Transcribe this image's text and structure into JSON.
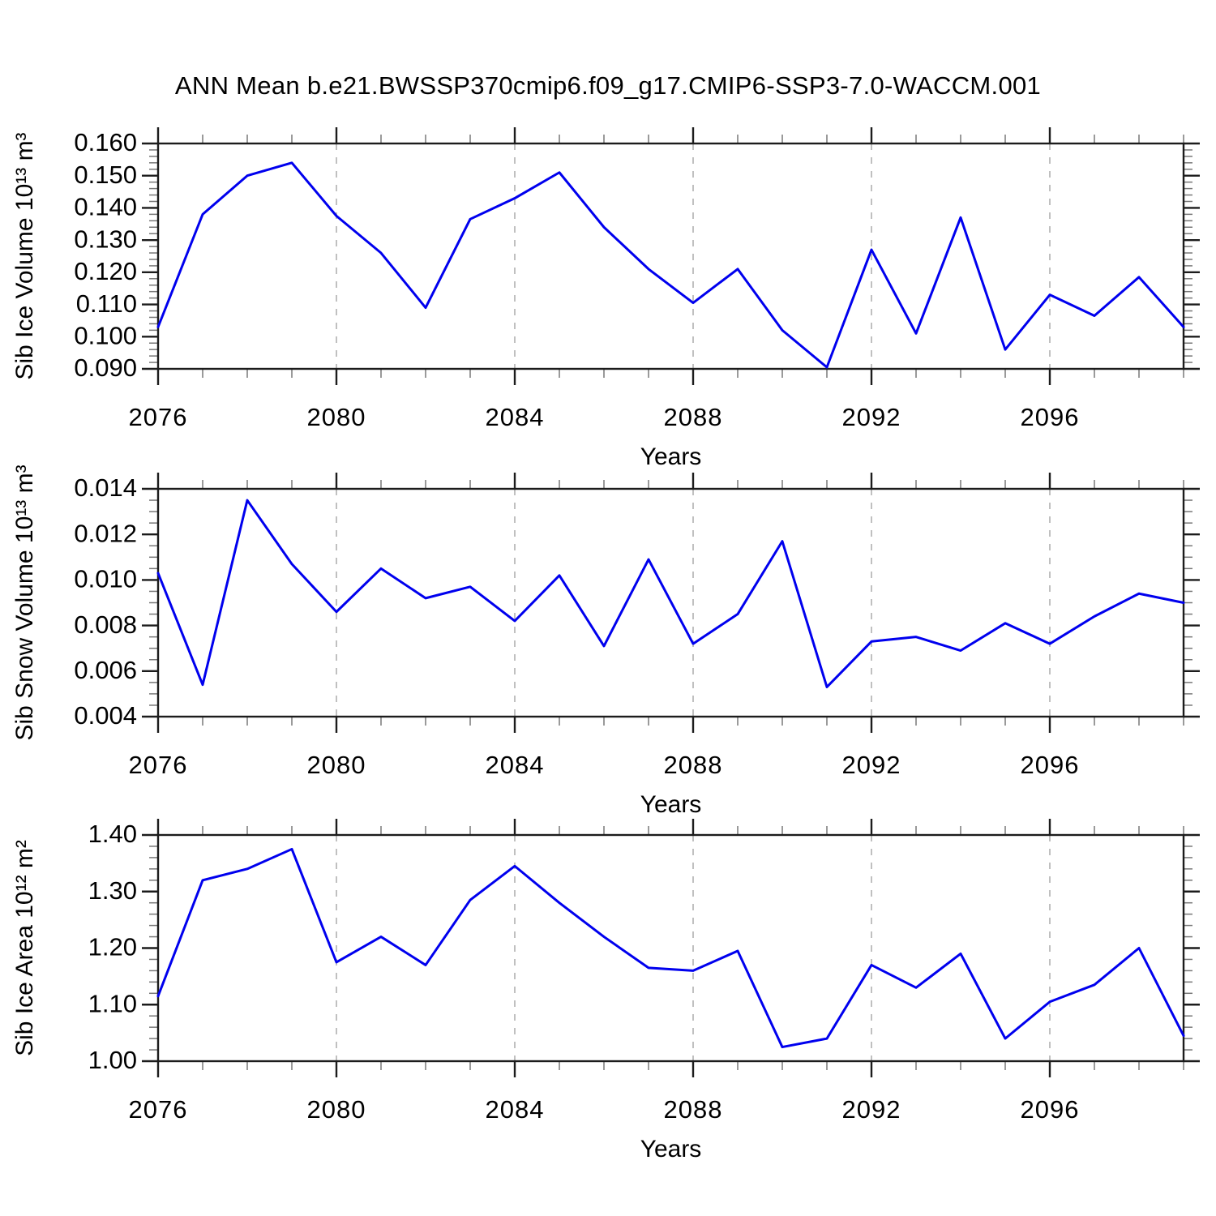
{
  "title": "ANN Mean b.e21.BWSSP370cmip6.f09_g17.CMIP6-SSP3-7.0-WACCM.001",
  "line_color": "#0000ee",
  "grid_color": "#ababab",
  "xlabel": "Years",
  "x_range": [
    2076,
    2099
  ],
  "x_major_ticks": [
    2076,
    2080,
    2084,
    2088,
    2092,
    2096
  ],
  "x_gridlines": [
    2080,
    2084,
    2088,
    2092,
    2096
  ],
  "years": [
    2076,
    2077,
    2078,
    2079,
    2080,
    2081,
    2082,
    2083,
    2084,
    2085,
    2086,
    2087,
    2088,
    2089,
    2090,
    2091,
    2092,
    2093,
    2094,
    2095,
    2096,
    2097,
    2098,
    2099
  ],
  "chart_data": [
    {
      "id": "sib-ice-volume",
      "type": "line",
      "ylabel": "Sib Ice Volume 10¹³ m³",
      "ylim": [
        0.09,
        0.16
      ],
      "ytick_step": 0.01,
      "ytick_labels": [
        "0.090",
        "0.100",
        "0.110",
        "0.120",
        "0.130",
        "0.140",
        "0.150",
        "0.160"
      ],
      "minor_step": 0.002,
      "x": [
        2076,
        2077,
        2078,
        2079,
        2080,
        2081,
        2082,
        2083,
        2084,
        2085,
        2086,
        2087,
        2088,
        2089,
        2090,
        2091,
        2092,
        2093,
        2094,
        2095,
        2096,
        2097,
        2098,
        2099
      ],
      "values": [
        0.103,
        0.138,
        0.15,
        0.154,
        0.1375,
        0.126,
        0.109,
        0.1365,
        0.143,
        0.151,
        0.134,
        0.121,
        0.1105,
        0.121,
        0.102,
        0.0905,
        0.127,
        0.101,
        0.137,
        0.096,
        0.113,
        0.1065,
        0.1185,
        0.103
      ],
      "xlabel": "Years",
      "grid": "vertical-dashed",
      "legend": "none"
    },
    {
      "id": "sib-snow-volume",
      "type": "line",
      "ylabel": "Sib Snow Volume 10¹³ m³",
      "ylim": [
        0.004,
        0.014
      ],
      "ytick_step": 0.002,
      "ytick_labels": [
        "0.004",
        "0.006",
        "0.008",
        "0.010",
        "0.012",
        "0.014"
      ],
      "minor_step": 0.0005,
      "x": [
        2076,
        2077,
        2078,
        2079,
        2080,
        2081,
        2082,
        2083,
        2084,
        2085,
        2086,
        2087,
        2088,
        2089,
        2090,
        2091,
        2092,
        2093,
        2094,
        2095,
        2096,
        2097,
        2098,
        2099
      ],
      "values": [
        0.0103,
        0.0054,
        0.0135,
        0.0107,
        0.0086,
        0.0105,
        0.0092,
        0.0097,
        0.0082,
        0.0102,
        0.0071,
        0.0109,
        0.0072,
        0.0085,
        0.0117,
        0.0053,
        0.0073,
        0.0075,
        0.0069,
        0.0081,
        0.0072,
        0.0084,
        0.0094,
        0.009
      ],
      "xlabel": "Years",
      "grid": "vertical-dashed",
      "legend": "none"
    },
    {
      "id": "sib-ice-area",
      "type": "line",
      "ylabel": "Sib Ice Area 10¹² m²",
      "ylim": [
        1.0,
        1.4
      ],
      "ytick_step": 0.1,
      "ytick_labels": [
        "1.00",
        "1.10",
        "1.20",
        "1.30",
        "1.40"
      ],
      "minor_step": 0.02,
      "x": [
        2076,
        2077,
        2078,
        2079,
        2080,
        2081,
        2082,
        2083,
        2084,
        2085,
        2086,
        2087,
        2088,
        2089,
        2090,
        2091,
        2092,
        2093,
        2094,
        2095,
        2096,
        2097,
        2098,
        2099
      ],
      "values": [
        1.115,
        1.32,
        1.34,
        1.375,
        1.175,
        1.22,
        1.17,
        1.285,
        1.345,
        1.28,
        1.22,
        1.165,
        1.16,
        1.195,
        1.025,
        1.04,
        1.17,
        1.13,
        1.19,
        1.04,
        1.105,
        1.135,
        1.2,
        1.045
      ],
      "xlabel": "Years",
      "grid": "vertical-dashed",
      "legend": "none"
    }
  ]
}
